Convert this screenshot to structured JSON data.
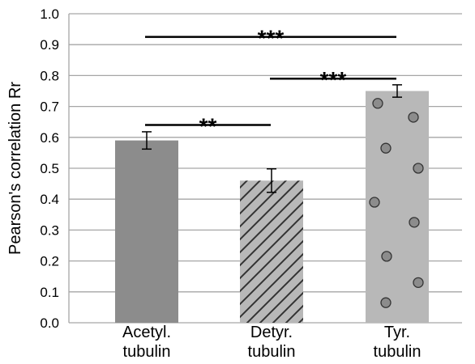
{
  "chart_data": {
    "type": "bar",
    "categories": [
      [
        "Acetyl.",
        "tubulin"
      ],
      [
        "Detyr.",
        "tubulin"
      ],
      [
        "Tyr.",
        "tubulin"
      ]
    ],
    "values": [
      0.59,
      0.46,
      0.75
    ],
    "errors": [
      0.028,
      0.038,
      0.02
    ],
    "fills": [
      "solid-dark",
      "hatched",
      "dotted"
    ],
    "colors": {
      "dark_bar": "#8c8c8c",
      "light_bar": "#b8b8b8",
      "grid": "#a6a6a6",
      "pattern": "#333333",
      "dot": "#8c8c8c"
    },
    "ylabel": "Pearson's correlation Rr",
    "ylim": [
      0,
      1.0
    ],
    "yticks": [
      0.0,
      0.1,
      0.2,
      0.3,
      0.4,
      0.5,
      0.6,
      0.7,
      0.8,
      0.9,
      1.0
    ],
    "ytick_labels": [
      "0.0",
      "0.1",
      "0.2",
      "0.3",
      "0.4",
      "0.5",
      "0.6",
      "0.7",
      "0.8",
      "0.9",
      "1.0"
    ],
    "grid": true,
    "significance": [
      {
        "from": 0,
        "to": 1,
        "y": 0.64,
        "label": "**"
      },
      {
        "from": 1,
        "to": 2,
        "y": 0.79,
        "label": "***"
      },
      {
        "from": 0,
        "to": 2,
        "y": 0.925,
        "label": "***"
      }
    ]
  }
}
